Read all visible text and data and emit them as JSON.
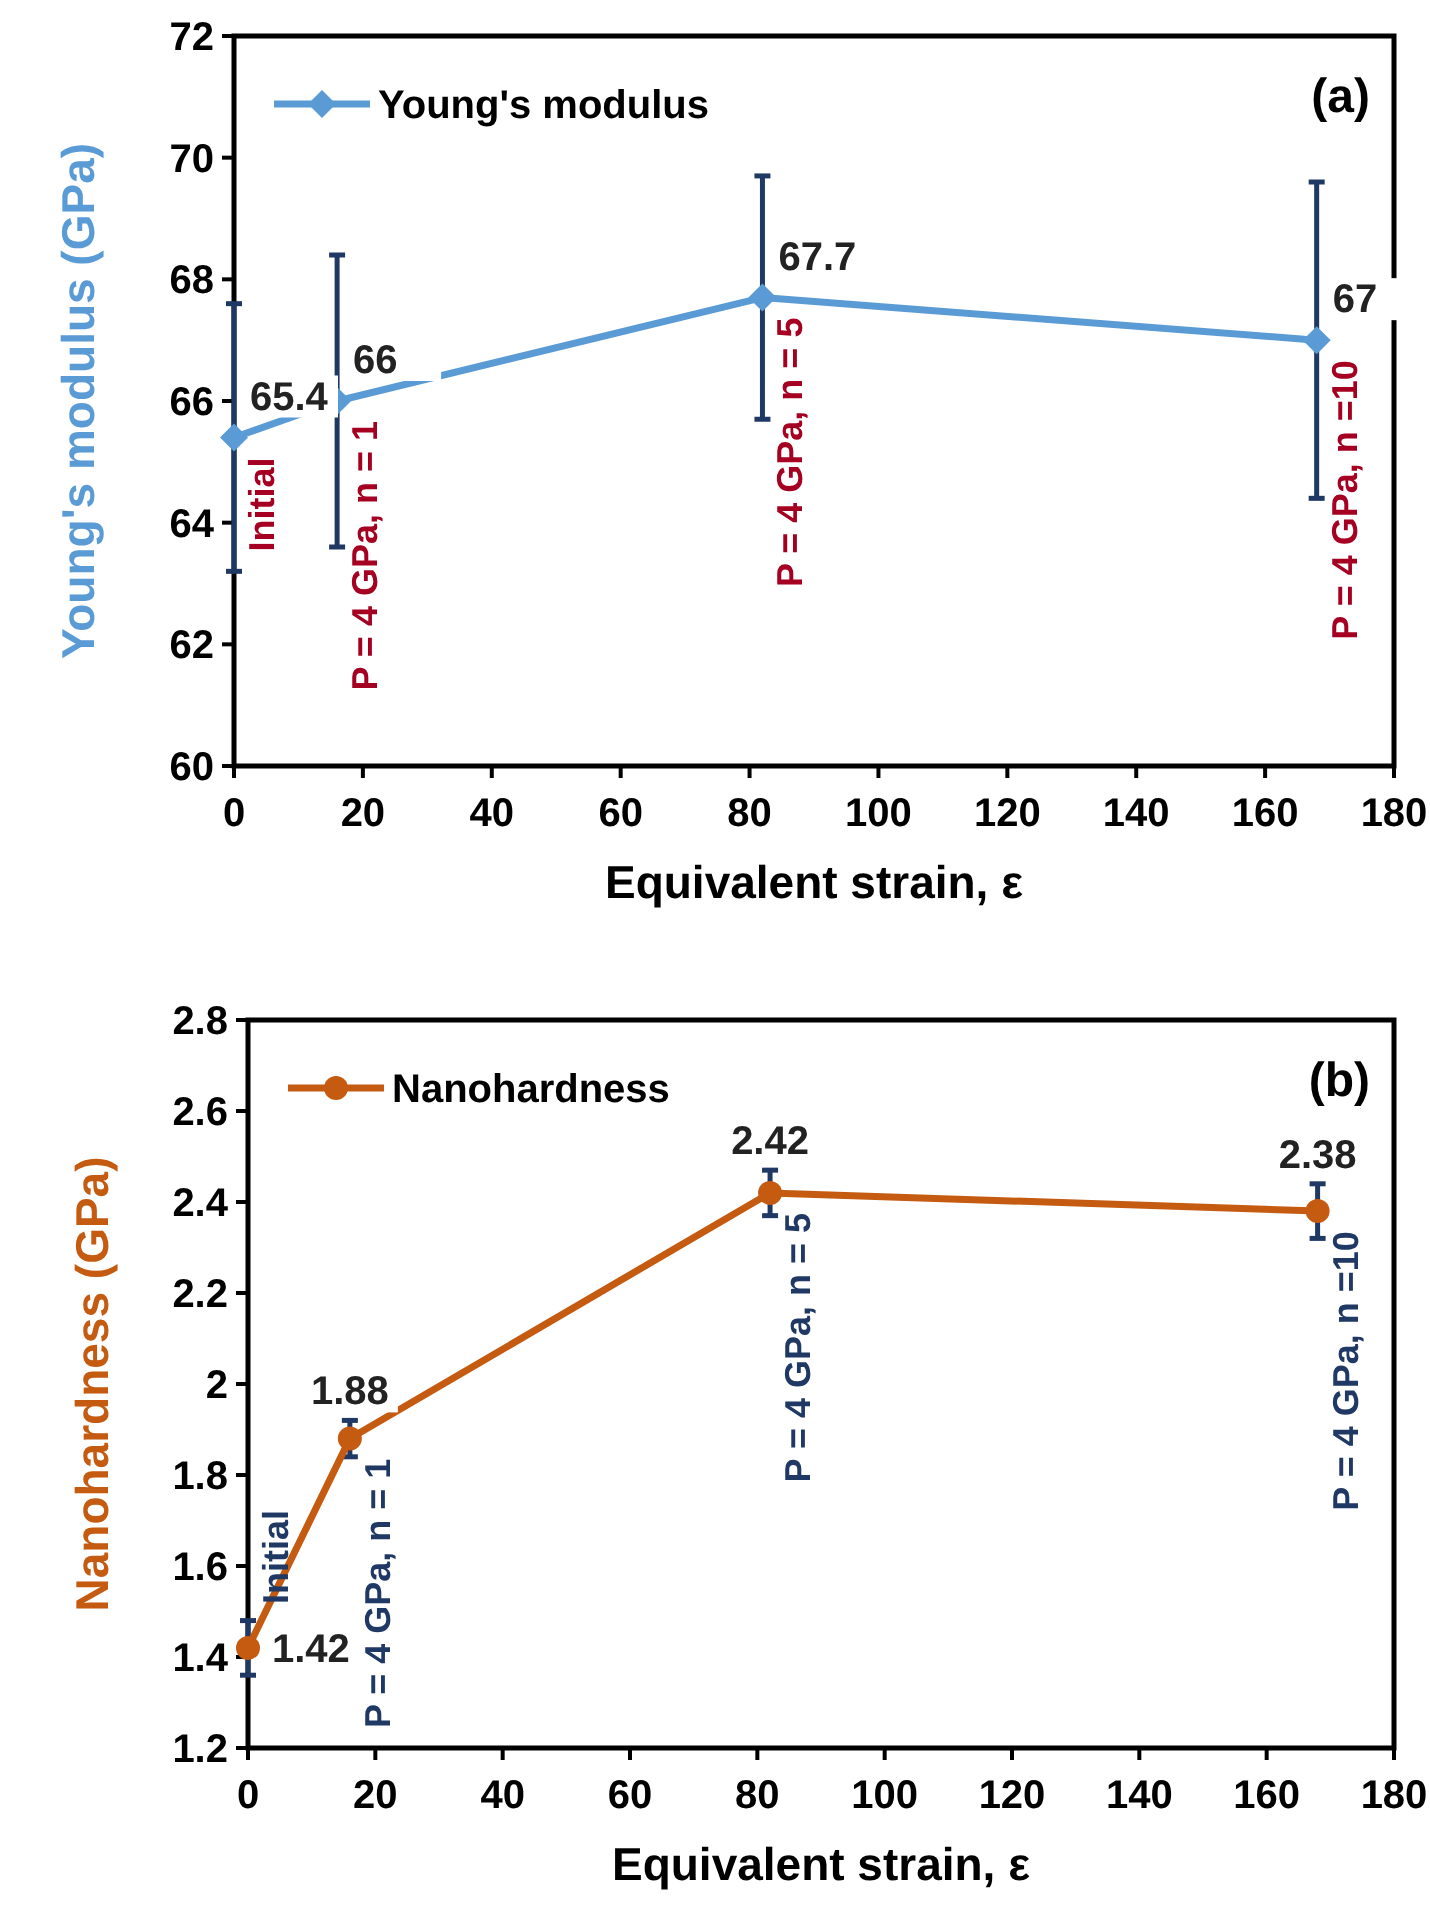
{
  "chart_data": [
    {
      "type": "line",
      "xlabel": "Equivalent strain, ε",
      "ylabel": "Young's modulus (GPa)",
      "xlim": [
        0,
        180
      ],
      "xticks": [
        0,
        20,
        40,
        60,
        80,
        100,
        120,
        140,
        160,
        180
      ],
      "ylim": [
        60,
        72
      ],
      "yticks": [
        60,
        62,
        64,
        66,
        68,
        70,
        72
      ],
      "x": [
        0,
        16,
        82,
        168
      ],
      "series": [
        {
          "name": "Young's modulus",
          "color": "#5b9bd5",
          "values": [
            65.4,
            66,
            67.7,
            67
          ],
          "errors": [
            2.2,
            2.4,
            2,
            2.6
          ]
        }
      ],
      "marker": "diamond",
      "legend": "top left",
      "data_labels": true,
      "grid": false,
      "annotations": [
        "(a)",
        {
          "text": "Initial",
          "x": 0,
          "y": 65.4
        },
        {
          "text": "P = 4 GPa, n = 1",
          "x": 16,
          "y": 66
        },
        {
          "text": "P = 4 GPa, n = 5",
          "x": 82,
          "y": 67.7
        },
        {
          "text": "P = 4 GPa, n =10",
          "x": 168,
          "y": 67
        }
      ]
    },
    {
      "type": "line",
      "xlabel": "Equivalent strain, ε",
      "ylabel": "Nanohardness (GPa)",
      "xlim": [
        0,
        180
      ],
      "xticks": [
        0,
        20,
        40,
        60,
        80,
        100,
        120,
        140,
        160,
        180
      ],
      "ylim": [
        1.2,
        2.8
      ],
      "yticks": [
        1.2,
        1.4,
        1.6,
        1.8,
        2,
        2.2,
        2.4,
        2.6,
        2.8
      ],
      "x": [
        0,
        16,
        82,
        168
      ],
      "series": [
        {
          "name": "Nanohardness",
          "color": "#c55a11",
          "values": [
            1.42,
            1.88,
            2.42,
            2.38
          ],
          "errors": [
            0.06,
            0.04,
            0.05,
            0.06
          ]
        }
      ],
      "marker": "circle",
      "legend": "top left",
      "data_labels": true,
      "grid": false,
      "annotations": [
        "(b)",
        {
          "text": "Initial",
          "x": 0,
          "y": 1.42
        },
        {
          "text": "P = 4 GPa, n = 1",
          "x": 16,
          "y": 1.88
        },
        {
          "text": "P = 4 GPa, n = 5",
          "x": 82,
          "y": 2.42
        },
        {
          "text": "P = 4 GPa, n =10",
          "x": 168,
          "y": 2.38
        }
      ]
    }
  ]
}
